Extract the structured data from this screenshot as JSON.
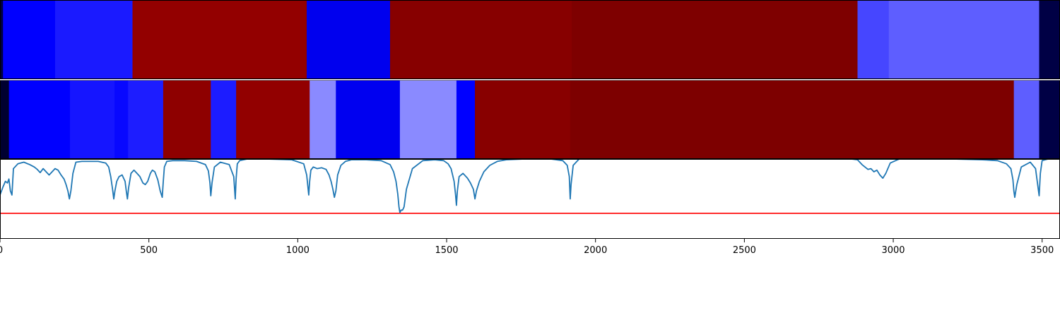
{
  "chart_data": [
    {
      "type": "heatmap",
      "xlim": [
        0,
        3560
      ],
      "segments": [
        {
          "start": 0,
          "end": 10,
          "color": "#000040"
        },
        {
          "start": 10,
          "end": 185,
          "color": "#0000ff"
        },
        {
          "start": 185,
          "end": 445,
          "color": "#1a1aff"
        },
        {
          "start": 445,
          "end": 1030,
          "color": "#930000"
        },
        {
          "start": 1030,
          "end": 1310,
          "color": "#0000ee"
        },
        {
          "start": 1310,
          "end": 1920,
          "color": "#870000"
        },
        {
          "start": 1920,
          "end": 2880,
          "color": "#7e0000"
        },
        {
          "start": 2880,
          "end": 2985,
          "color": "#4646ff"
        },
        {
          "start": 2985,
          "end": 3490,
          "color": "#5e5eff"
        },
        {
          "start": 3490,
          "end": 3560,
          "color": "#000045"
        }
      ]
    },
    {
      "type": "heatmap",
      "xlim": [
        0,
        3560
      ],
      "segments": [
        {
          "start": 0,
          "end": 30,
          "color": "#000030"
        },
        {
          "start": 30,
          "end": 235,
          "color": "#0000ff"
        },
        {
          "start": 235,
          "end": 385,
          "color": "#1515ff"
        },
        {
          "start": 385,
          "end": 430,
          "color": "#0808ff"
        },
        {
          "start": 430,
          "end": 548,
          "color": "#1d1dff"
        },
        {
          "start": 548,
          "end": 708,
          "color": "#8e0000"
        },
        {
          "start": 708,
          "end": 793,
          "color": "#1c1cff"
        },
        {
          "start": 793,
          "end": 1040,
          "color": "#920000"
        },
        {
          "start": 1040,
          "end": 1128,
          "color": "#8a8aff"
        },
        {
          "start": 1128,
          "end": 1343,
          "color": "#0000f0"
        },
        {
          "start": 1343,
          "end": 1533,
          "color": "#8a8aff"
        },
        {
          "start": 1533,
          "end": 1595,
          "color": "#0000ff"
        },
        {
          "start": 1595,
          "end": 1915,
          "color": "#880000"
        },
        {
          "start": 1915,
          "end": 3405,
          "color": "#7d0000"
        },
        {
          "start": 3405,
          "end": 3490,
          "color": "#5e5eff"
        },
        {
          "start": 3490,
          "end": 3560,
          "color": "#000045"
        }
      ]
    },
    {
      "type": "line",
      "xlim": [
        0,
        3560
      ],
      "ylim": [
        0,
        1
      ],
      "x_ticks": [
        0,
        500,
        1000,
        1500,
        2000,
        2500,
        3000,
        3500
      ],
      "threshold": 0.32,
      "series": [
        {
          "color": "#1f77b4",
          "x": [
            0,
            10,
            18,
            25,
            30,
            35,
            40,
            45,
            60,
            80,
            100,
            115,
            125,
            135,
            145,
            155,
            165,
            175,
            185,
            195,
            205,
            215,
            222,
            228,
            233,
            238,
            245,
            255,
            275,
            300,
            330,
            355,
            365,
            372,
            378,
            382,
            386,
            392,
            400,
            410,
            420,
            424,
            428,
            432,
            440,
            450,
            460,
            470,
            480,
            488,
            496,
            505,
            512,
            520,
            530,
            538,
            545,
            548,
            552,
            560,
            580,
            620,
            660,
            690,
            700,
            705,
            708,
            712,
            720,
            740,
            770,
            785,
            790,
            793,
            797,
            805,
            830,
            900,
            980,
            1020,
            1030,
            1037,
            1040,
            1044,
            1052,
            1065,
            1080,
            1095,
            1105,
            1112,
            1118,
            1123,
            1128,
            1134,
            1145,
            1160,
            1180,
            1230,
            1280,
            1310,
            1322,
            1330,
            1336,
            1340,
            1343,
            1347,
            1352,
            1357,
            1365,
            1385,
            1420,
            1460,
            1490,
            1505,
            1515,
            1525,
            1530,
            1533,
            1536,
            1542,
            1555,
            1570,
            1580,
            1590,
            1595,
            1600,
            1610,
            1625,
            1645,
            1670,
            1700,
            1760,
            1850,
            1890,
            1905,
            1912,
            1915,
            1918,
            1925,
            1945,
            2000,
            2500,
            2860,
            2880,
            2895,
            2915,
            2925,
            2935,
            2945,
            2955,
            2965,
            2975,
            2990,
            3020,
            3100,
            3200,
            3300,
            3350,
            3380,
            3395,
            3402,
            3405,
            3408,
            3415,
            3430,
            3460,
            3478,
            3485,
            3490,
            3494,
            3500,
            3520,
            3560
          ],
          "y": [
            0.55,
            0.65,
            0.72,
            0.7,
            0.75,
            0.6,
            0.55,
            0.88,
            0.94,
            0.96,
            0.93,
            0.9,
            0.87,
            0.83,
            0.88,
            0.84,
            0.8,
            0.84,
            0.88,
            0.86,
            0.8,
            0.75,
            0.68,
            0.6,
            0.5,
            0.6,
            0.82,
            0.96,
            0.97,
            0.97,
            0.97,
            0.95,
            0.9,
            0.78,
            0.62,
            0.5,
            0.6,
            0.72,
            0.78,
            0.8,
            0.72,
            0.6,
            0.5,
            0.64,
            0.82,
            0.86,
            0.82,
            0.78,
            0.7,
            0.68,
            0.72,
            0.82,
            0.86,
            0.84,
            0.74,
            0.6,
            0.52,
            0.7,
            0.9,
            0.97,
            0.98,
            0.98,
            0.97,
            0.93,
            0.85,
            0.7,
            0.54,
            0.7,
            0.9,
            0.96,
            0.93,
            0.78,
            0.5,
            0.75,
            0.94,
            0.98,
            1.0,
            1.0,
            0.99,
            0.94,
            0.8,
            0.55,
            0.72,
            0.86,
            0.9,
            0.88,
            0.89,
            0.87,
            0.8,
            0.72,
            0.62,
            0.52,
            0.6,
            0.8,
            0.92,
            0.97,
            0.99,
            0.99,
            0.98,
            0.93,
            0.84,
            0.72,
            0.56,
            0.4,
            0.33,
            0.36,
            0.36,
            0.4,
            0.62,
            0.88,
            0.98,
            0.99,
            0.98,
            0.94,
            0.88,
            0.72,
            0.55,
            0.42,
            0.6,
            0.78,
            0.82,
            0.76,
            0.7,
            0.62,
            0.5,
            0.6,
            0.72,
            0.84,
            0.92,
            0.97,
            0.99,
            1.0,
            1.0,
            0.98,
            0.92,
            0.78,
            0.5,
            0.68,
            0.92,
            1.0,
            1.0,
            1.0,
            1.0,
            0.99,
            0.93,
            0.87,
            0.88,
            0.84,
            0.86,
            0.8,
            0.76,
            0.82,
            0.95,
            1.0,
            1.0,
            1.0,
            0.99,
            0.98,
            0.94,
            0.88,
            0.74,
            0.6,
            0.52,
            0.68,
            0.9,
            0.96,
            0.88,
            0.68,
            0.54,
            0.82,
            0.98,
            1.0,
            1.0
          ]
        }
      ]
    }
  ]
}
